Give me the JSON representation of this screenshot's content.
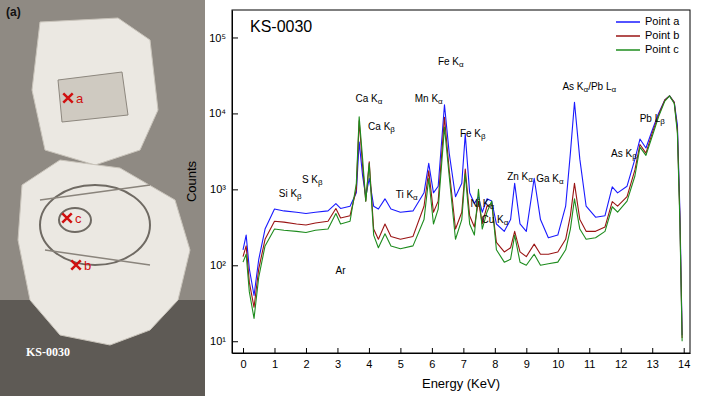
{
  "panel": {
    "label": "(a)",
    "sample": "KS-0030",
    "points": [
      "a",
      "b",
      "c"
    ]
  },
  "chart_data": {
    "type": "line",
    "title": "KS-0030",
    "x_label": "Energy (KeV)",
    "y_label": "Counts",
    "log": "y",
    "grid": false,
    "legend": "upper right",
    "xlim": [
      -0.35,
      14.2
    ],
    "xticks": [
      0,
      1,
      2,
      3,
      4,
      5,
      6,
      7,
      8,
      9,
      10,
      11,
      12,
      13,
      14
    ],
    "ylim": [
      7,
      230000
    ],
    "yticks": [
      {
        "value": 10,
        "label": "10¹"
      },
      {
        "value": 100,
        "label": "10²"
      },
      {
        "value": 1000,
        "label": "10³"
      },
      {
        "value": 10000,
        "label": "10⁴"
      },
      {
        "value": 100000,
        "label": "10⁵"
      }
    ],
    "x": [
      0,
      0.1,
      0.2,
      0.35,
      0.5,
      0.7,
      1.0,
      1.3,
      1.7,
      2.0,
      2.3,
      2.7,
      2.95,
      3.1,
      3.4,
      3.6,
      3.69,
      3.8,
      3.9,
      4.01,
      4.15,
      4.3,
      4.51,
      4.7,
      5.0,
      5.4,
      5.75,
      5.9,
      6.05,
      6.2,
      6.4,
      6.55,
      6.75,
      6.95,
      7.06,
      7.2,
      7.35,
      7.48,
      7.6,
      7.75,
      7.9,
      8.05,
      8.3,
      8.5,
      8.63,
      8.8,
      9.0,
      9.25,
      9.45,
      9.7,
      10.0,
      10.25,
      10.4,
      10.53,
      10.7,
      10.9,
      11.2,
      11.5,
      11.73,
      11.9,
      12.2,
      12.45,
      12.61,
      12.8,
      13.0,
      13.2,
      13.4,
      13.55,
      13.7,
      13.8,
      13.88,
      13.95
    ],
    "series": [
      {
        "name": "Point a",
        "color": "#1a1aff",
        "values": [
          160,
          250,
          90,
          40,
          120,
          300,
          550,
          520,
          500,
          480,
          500,
          520,
          650,
          560,
          600,
          900,
          4200,
          1500,
          800,
          1400,
          600,
          550,
          750,
          550,
          500,
          520,
          900,
          2200,
          900,
          1100,
          13000,
          3000,
          800,
          1200,
          5300,
          900,
          650,
          800,
          500,
          750,
          700,
          350,
          280,
          400,
          1200,
          350,
          280,
          1400,
          400,
          230,
          250,
          600,
          3000,
          14000,
          2500,
          600,
          430,
          450,
          1080,
          900,
          1100,
          2500,
          4600,
          3500,
          6000,
          10000,
          15000,
          17000,
          14000,
          7000,
          500,
          12
        ]
      },
      {
        "name": "Point b",
        "color": "#9a1414",
        "values": [
          130,
          180,
          60,
          28,
          90,
          220,
          380,
          370,
          350,
          340,
          360,
          380,
          560,
          420,
          450,
          1000,
          8000,
          2000,
          700,
          2300,
          300,
          220,
          350,
          240,
          220,
          240,
          600,
          1750,
          500,
          700,
          8900,
          1800,
          300,
          500,
          1850,
          450,
          320,
          700,
          350,
          600,
          650,
          200,
          150,
          170,
          280,
          150,
          130,
          190,
          140,
          140,
          150,
          220,
          450,
          1200,
          400,
          280,
          280,
          320,
          690,
          600,
          800,
          1800,
          3900,
          3000,
          5500,
          9500,
          15000,
          17000,
          14000,
          6000,
          400,
          11
        ]
      },
      {
        "name": "Point c",
        "color": "#1e8c1e",
        "values": [
          110,
          140,
          45,
          20,
          70,
          180,
          300,
          290,
          280,
          270,
          290,
          300,
          480,
          350,
          380,
          1200,
          9000,
          2500,
          700,
          2200,
          250,
          170,
          260,
          180,
          165,
          180,
          400,
          1400,
          350,
          550,
          6600,
          1500,
          220,
          400,
          1600,
          350,
          250,
          1000,
          300,
          500,
          700,
          160,
          110,
          120,
          250,
          110,
          100,
          140,
          100,
          105,
          110,
          160,
          300,
          750,
          300,
          220,
          230,
          280,
          590,
          500,
          700,
          1500,
          3600,
          2800,
          5000,
          9000,
          14500,
          17000,
          13500,
          5500,
          350,
          10
        ]
      }
    ],
    "annotations": [
      {
        "text": "Si Kβ",
        "x": 1.5,
        "y": 870
      },
      {
        "text": "S Kβ",
        "x": 2.2,
        "y": 1330
      },
      {
        "text": "Ar",
        "x": 3.1,
        "y": 85
      },
      {
        "text": "Ca Kα",
        "x": 4.0,
        "y": 15500
      },
      {
        "text": "Ca Kβ",
        "x": 4.4,
        "y": 6600
      },
      {
        "text": "Ti Kα",
        "x": 5.2,
        "y": 850
      },
      {
        "text": "Mn Kα",
        "x": 5.9,
        "y": 15500
      },
      {
        "text": "Fe Kα",
        "x": 6.6,
        "y": 48000
      },
      {
        "text": "Fe Kβ",
        "x": 7.3,
        "y": 5400
      },
      {
        "text": "Ni Kα",
        "x": 7.6,
        "y": 650
      },
      {
        "text": "Cu Kα",
        "x": 8.0,
        "y": 390
      },
      {
        "text": "Zn Kα",
        "x": 8.8,
        "y": 1450
      },
      {
        "text": "Ga Kα",
        "x": 9.75,
        "y": 1370
      },
      {
        "text": "As Kα/Pb Lα",
        "x": 11.0,
        "y": 22000
      },
      {
        "text": "As Kβ",
        "x": 12.1,
        "y": 2900
      },
      {
        "text": "Pb Lβ",
        "x": 13.0,
        "y": 8400
      }
    ]
  }
}
